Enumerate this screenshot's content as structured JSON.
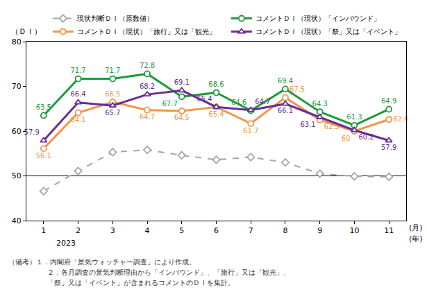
{
  "chart_data": {
    "type": "line",
    "y_label": "（ＤＩ）",
    "categories": [
      "1",
      "2",
      "3",
      "4",
      "5",
      "6",
      "7",
      "8",
      "9",
      "10",
      "11"
    ],
    "x_unit_labels": [
      "(月)",
      "(年)"
    ],
    "year_label": "2023",
    "ylim": [
      40,
      80
    ],
    "yticks": [
      40,
      50,
      60,
      70,
      80
    ],
    "reference_line": 50,
    "grid": false,
    "legend": "top",
    "series": [
      {
        "name": "現状判断ＤＩ（原数値）",
        "color": "#a6a6a6",
        "marker": "diamond",
        "line_style": "dash",
        "data_labels": false,
        "values": [
          46.6,
          51.1,
          55.3,
          55.8,
          54.6,
          53.6,
          54.2,
          53.0,
          50.5,
          49.9,
          49.8
        ]
      },
      {
        "name": "コメントＤＩ（現状）「インバウンド」",
        "color": "#1e9a3c",
        "marker": "circle",
        "line_style": "solid",
        "data_labels": true,
        "values": [
          63.5,
          71.7,
          71.7,
          72.8,
          67.7,
          68.6,
          64.6,
          69.4,
          64.3,
          61.3,
          64.9
        ]
      },
      {
        "name": "コメントＤＩ（現状）「旅行」又は「観光」",
        "color": "#f0964b",
        "marker": "circle",
        "line_style": "solid",
        "data_labels": true,
        "values": [
          56.1,
          64.1,
          66.5,
          64.7,
          64.5,
          65.4,
          61.7,
          67.5,
          62.5,
          60,
          62.6
        ]
      },
      {
        "name": "コメントＤＩ（現状）「祭」又は「イベント」",
        "color": "#6a2c91",
        "marker": "triangle-up",
        "line_style": "solid",
        "data_labels": true,
        "values": [
          57.9,
          66.4,
          65.7,
          68.2,
          69.1,
          65.4,
          64.7,
          66.1,
          63.1,
          60.2,
          57.9
        ]
      }
    ],
    "notes": [
      "（備考）１．内閣府「景気ウォッチャー調査」により作成。",
      "２．各月調査の景気判断理由から「インバウンド」、「旅行」又は「観光」、",
      "「祭」又は「イベント」が含まれるコメントのＤＩを集計。"
    ]
  }
}
